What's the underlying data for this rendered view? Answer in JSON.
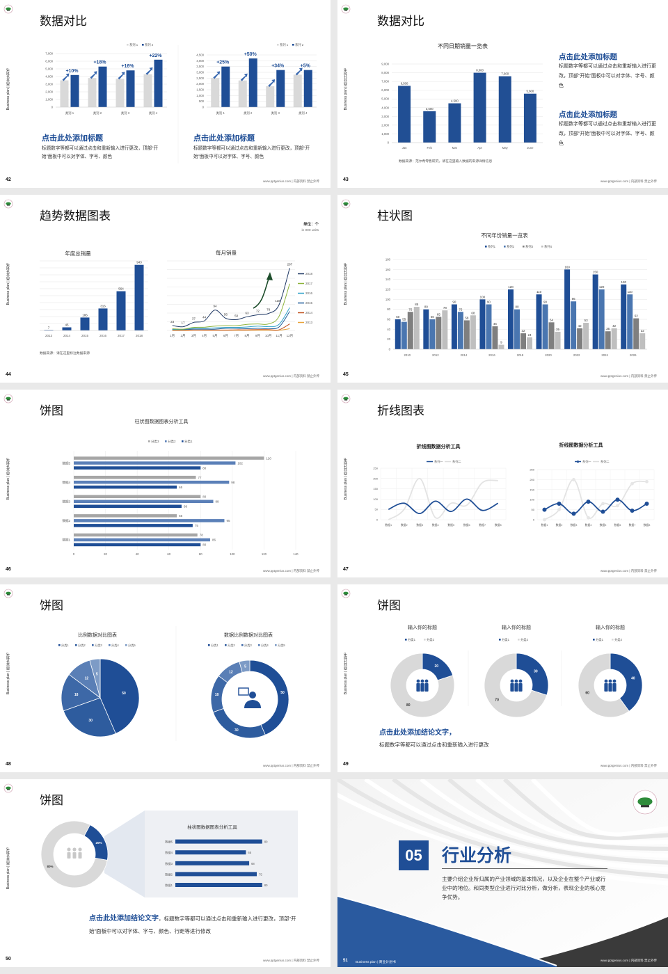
{
  "common": {
    "footer": "www.pptgenius.com | 内部资料 禁止外传",
    "side_label": "Business plan | 商业计划书",
    "accent": "#1f4e96"
  },
  "slides": [
    {
      "page": "42",
      "title": "数据对比",
      "blocks": [
        {
          "heading": "点击此处添加标题",
          "text": "标题数字等都可以通过点击和重新输入进行更改，顶部“开始”面板中可以对字体、字号、颜色"
        },
        {
          "heading": "点击此处添加标题",
          "text": "标题数字等都可以通过点击和重新输入进行更改，顶部“开始”面板中可以对字体、字号、颜色"
        }
      ]
    },
    {
      "page": "43",
      "title": "数据对比",
      "source": "数据来源：范尔希零售研究，请在这里输入数据的来源详情信息",
      "blocks": [
        {
          "heading": "点击此处添加标题",
          "text": "标题数字等都可以通过点击和重新输入进行更改，顶部“开始”面板中可以对字体、字号、颜色"
        },
        {
          "heading": "点击此处添加标题",
          "text": "标题数字等都可以通过点击和重新输入进行更改，顶部“开始”面板中可以对字体、字号、颜色"
        }
      ]
    },
    {
      "page": "44",
      "title": "趋势数据图表",
      "unit": "单位：个",
      "unit_en": "in 000 units",
      "source": "数据来源：请在这里标注数据来源"
    },
    {
      "page": "45",
      "title": "柱状图"
    },
    {
      "page": "46",
      "title": "饼图"
    },
    {
      "page": "47",
      "title": "折线图表"
    },
    {
      "page": "48",
      "title": "饼图"
    },
    {
      "page": "49",
      "title": "饼图",
      "conclusion": "点击此处添加结论文字，",
      "text": "标题数字等都可以通过点击和重新输入进行更改"
    },
    {
      "page": "50",
      "title": "饼图",
      "conclusion": "点击此处添加结论文字",
      "text": "，标题数字等都可以通过点击和重新输入进行更改，顶部“开始”面板中可以对字体、字号、颜色、行距等进行修改"
    },
    {
      "page": "51",
      "number": "05",
      "title": "行业分析",
      "description": "主要介绍企业所归属的产业领域的基本情况，以及企业在整个产业或行业中的地位。和同类型企业进行对比分析，做分析，表现企业的核心竞争优势。",
      "footer_label": "Business plan | 商业计划书"
    }
  ],
  "chart_data": [
    {
      "type": "bar",
      "categories": [
        "类别 1",
        "类别 2",
        "类别 3",
        "类别 4"
      ],
      "series": [
        {
          "name": "系列 1",
          "values": [
            3500,
            3800,
            3700,
            4300
          ]
        },
        {
          "name": "系列 2",
          "values": [
            4200,
            5300,
            4800,
            6200
          ]
        }
      ],
      "annotations": [
        "+10%",
        "+18%",
        "+16%",
        "+22%"
      ],
      "ylim": [
        0,
        7000
      ],
      "yticks": [
        "0",
        "1,000",
        "2,000",
        "3,000",
        "4,000",
        "5,000",
        "6,000",
        "7,000"
      ],
      "legend": "top-right",
      "grid": true
    },
    {
      "type": "bar",
      "categories": [
        "类别 1",
        "类别 2",
        "类别 3",
        "类别 4"
      ],
      "series": [
        {
          "name": "系列 1",
          "values": [
            2500,
            2300,
            1800,
            2800
          ]
        },
        {
          "name": "系列 2",
          "values": [
            3500,
            4200,
            3200,
            3200
          ]
        }
      ],
      "annotations": [
        "+25%",
        "+50%",
        "+34%",
        "+5%"
      ],
      "ylim": [
        0,
        4500
      ],
      "yticks": [
        "0",
        "500",
        "1,000",
        "1,500",
        "2,000",
        "2,500",
        "3,000",
        "3,500",
        "4,000",
        "4,500"
      ],
      "legend": "top-right",
      "grid": true
    },
    {
      "type": "bar",
      "title": "不同日期销量一览表",
      "categories": [
        "Jan",
        "Feb",
        "Mar",
        "Apr",
        "May",
        "June"
      ],
      "series": [
        {
          "values": [
            6500,
            3600,
            4500,
            8000,
            7600,
            5600
          ]
        }
      ],
      "labels": [
        "6,500",
        "3,600",
        "4,500",
        "8,000",
        "7,600",
        "5,600"
      ],
      "ylim": [
        0,
        9000
      ],
      "yticks": [
        "0",
        "1,000",
        "2,000",
        "3,000",
        "4,000",
        "5,000",
        "6,000",
        "7,000",
        "8,000",
        "9,000"
      ],
      "grid": true
    },
    {
      "type": "bar",
      "title": "年度总销量",
      "categories": [
        "2013",
        "2014",
        "2015",
        "2016",
        "2017",
        "2018"
      ],
      "series": [
        {
          "values": [
            7,
            45,
            186,
            316,
            564,
            943
          ]
        }
      ],
      "ylim": [
        0,
        1000
      ],
      "grid": true
    },
    {
      "type": "line",
      "title": "每月销量",
      "categories": [
        "1月",
        "2月",
        "3月",
        "4月",
        "5月",
        "6月",
        "7月",
        "8月",
        "9月",
        "10月",
        "11月",
        "12月"
      ],
      "series": [
        {
          "name": "2018",
          "values": [
            23,
            17,
            37,
            44,
            94,
            56,
            50,
            63,
            72,
            78,
            118,
            287
          ],
          "color": "#1f3864"
        },
        {
          "name": "2017",
          "values": [
            8,
            6,
            14,
            15,
            20,
            22,
            22,
            28,
            30,
            30,
            65,
            215
          ],
          "color": "#8db33a"
        },
        {
          "name": "2016",
          "values": [
            5,
            5,
            10,
            10,
            12,
            14,
            14,
            16,
            20,
            18,
            28,
            105
          ],
          "color": "#31a3c9"
        },
        {
          "name": "2015",
          "values": [
            4,
            4,
            6,
            6,
            6,
            10,
            10,
            8,
            10,
            9,
            16,
            88
          ],
          "color": "#1f5c99"
        },
        {
          "name": "2014",
          "values": [
            2,
            2,
            2,
            2,
            2,
            2,
            3,
            3,
            4,
            4,
            3,
            30
          ],
          "color": "#c0501d"
        },
        {
          "name": "2013",
          "values": [
            0,
            0,
            1,
            1,
            1,
            1,
            1,
            1,
            1,
            1,
            1,
            8
          ],
          "color": "#e8a33a"
        }
      ],
      "labels": [
        "23",
        "17",
        "37",
        "44",
        "94",
        "56",
        "50",
        "63",
        "72",
        "78",
        "118",
        "287"
      ],
      "ylim": [
        0,
        320
      ],
      "legend": "right",
      "grid": true
    },
    {
      "type": "bar",
      "title": "不同年份销量一览表",
      "categories": [
        "2010",
        "2012",
        "2014",
        "2016",
        "2018",
        "2020",
        "2022",
        "2024",
        "2026"
      ],
      "series": [
        {
          "name": "系列1",
          "values": [
            60,
            80,
            90,
            100,
            120,
            110,
            160,
            150,
            130
          ]
        },
        {
          "name": "系列2",
          "values": [
            55,
            60,
            75,
            90,
            80,
            90,
            96,
            120,
            110
          ]
        },
        {
          "name": "系列3",
          "values": [
            75,
            65,
            58,
            46,
            32,
            54,
            42,
            36,
            62
          ]
        },
        {
          "name": "系列4",
          "values": [
            85,
            78,
            68,
            9,
            24,
            35,
            53,
            42,
            32
          ]
        }
      ],
      "ylim": [
        0,
        180
      ],
      "yticks": [
        "0",
        "20",
        "40",
        "60",
        "80",
        "100",
        "120",
        "140",
        "160",
        "180"
      ],
      "legend": "top",
      "grid": true
    },
    {
      "type": "bar",
      "orientation": "horizontal",
      "title": "柱状图数据图表分析工具",
      "categories": [
        "数据1",
        "数据2",
        "数据3",
        "数据4",
        "数据5"
      ],
      "series": [
        {
          "name": "分类1",
          "values": [
            80,
            75,
            68,
            65,
            80
          ]
        },
        {
          "name": "分类2",
          "values": [
            86,
            95,
            88,
            98,
            102
          ]
        },
        {
          "name": "分类3",
          "values": [
            78,
            65,
            80,
            77,
            120
          ]
        }
      ],
      "xlim": [
        0,
        140
      ],
      "xticks": [
        "0",
        "20",
        "40",
        "60",
        "80",
        "100",
        "120",
        "140"
      ],
      "legend": "top",
      "grid": true
    },
    {
      "type": "line",
      "title": "折线图数据分析工具",
      "categories": [
        "数据1",
        "数据2",
        "数据3",
        "数据4",
        "数据5",
        "数据6",
        "数据7",
        "数据8"
      ],
      "series": [
        {
          "name": "系列一",
          "values": [
            50,
            80,
            30,
            90,
            40,
            100,
            45,
            80
          ]
        },
        {
          "name": "系列二",
          "values": [
            0,
            50,
            200,
            10,
            80,
            70,
            180,
            190
          ]
        }
      ],
      "ylim": [
        0,
        250
      ],
      "yticks": [
        "0",
        "50",
        "100",
        "150",
        "200",
        "250"
      ],
      "smooth": true,
      "legend": "top",
      "grid": true
    },
    {
      "type": "line",
      "title": "折线图数据分析工具",
      "categories": [
        "数据1",
        "数据2",
        "数据3",
        "数据4",
        "数据5",
        "数据6",
        "数据7",
        "数据8"
      ],
      "series": [
        {
          "name": "系列一",
          "values": [
            50,
            80,
            30,
            90,
            40,
            100,
            45,
            80
          ]
        },
        {
          "name": "系列二",
          "values": [
            0,
            50,
            200,
            10,
            80,
            70,
            180,
            190
          ]
        }
      ],
      "ylim": [
        0,
        250
      ],
      "yticks": [
        "0",
        "50",
        "100",
        "150",
        "200",
        "250"
      ],
      "markers": true,
      "legend": "top",
      "grid": true
    },
    {
      "type": "pie",
      "title": "比例数据对比图表",
      "categories": [
        "分类1",
        "分类2",
        "分类3",
        "分类4",
        "分类5"
      ],
      "values": [
        50,
        30,
        18,
        12,
        5
      ],
      "legend": "top"
    },
    {
      "type": "pie",
      "donut": true,
      "title": "数据比例数据对比图表",
      "categories": [
        "分类1",
        "分类2",
        "分类3",
        "分类4",
        "分类5"
      ],
      "values": [
        50,
        30,
        18,
        12,
        5
      ],
      "legend": "top"
    },
    {
      "type": "pie",
      "donut": true,
      "title": "输入你的标题",
      "categories": [
        "分类1",
        "分类2"
      ],
      "values": [
        20,
        80
      ],
      "legend": "top"
    },
    {
      "type": "pie",
      "donut": true,
      "title": "输入你的标题",
      "categories": [
        "分类1",
        "分类2"
      ],
      "values": [
        30,
        70
      ],
      "legend": "top"
    },
    {
      "type": "pie",
      "donut": true,
      "title": "输入你的标题",
      "categories": [
        "分类1",
        "分类2"
      ],
      "values": [
        40,
        60
      ],
      "legend": "top"
    },
    {
      "type": "pie",
      "donut": true,
      "values": [
        80,
        20
      ],
      "labels": [
        "80%",
        "20%"
      ]
    },
    {
      "type": "bar",
      "orientation": "horizontal",
      "title": "柱状图数据图表分析工具",
      "categories": [
        "数据1",
        "数据2",
        "数据3",
        "数据4",
        "数据5"
      ],
      "series": [
        {
          "values": [
            80,
            75,
            68,
            65,
            80
          ]
        }
      ]
    }
  ]
}
